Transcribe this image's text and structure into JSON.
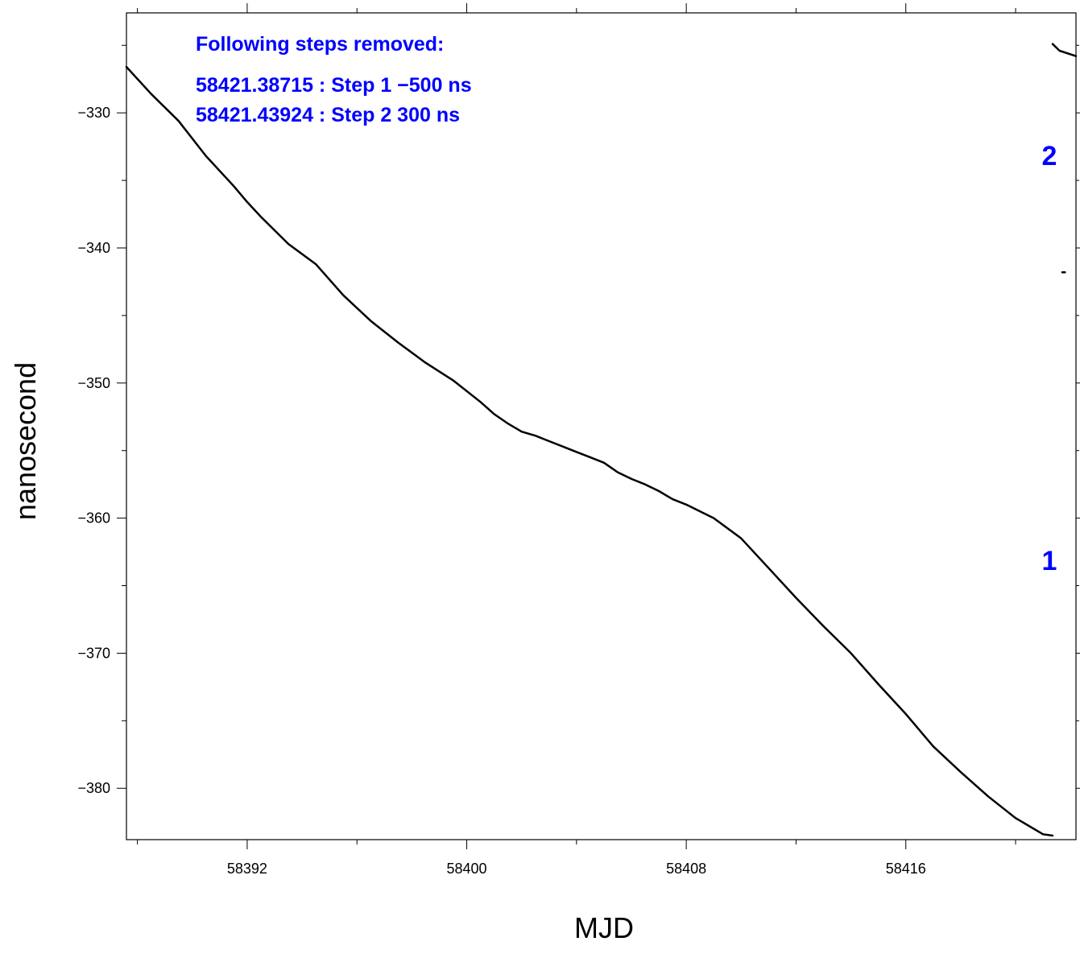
{
  "chart_data": {
    "type": "line",
    "title": "",
    "xlabel": "MJD",
    "ylabel": "nanosecond",
    "xlim": [
      58387.6,
      58422.2
    ],
    "ylim": [
      -383.8,
      -322.6
    ],
    "x_ticks": [
      58392,
      58400,
      58408,
      58416
    ],
    "x_tick_labels": [
      "58392",
      "58400",
      "58408",
      "58416"
    ],
    "x_minor_ticks": [
      58388,
      58396,
      58404,
      58412,
      58420
    ],
    "y_ticks": [
      -330,
      -340,
      -350,
      -360,
      -370,
      -380
    ],
    "y_tick_labels": [
      "−330",
      "−340",
      "−350",
      "−360",
      "−370",
      "−380"
    ],
    "y_minor_ticks": [
      -325,
      -335,
      -345,
      -355,
      -365,
      -375
    ],
    "grid": false,
    "legend": "none",
    "line_color": "#000000",
    "annotation_color": "#0000ff",
    "annotations": {
      "heading": "Following steps removed:",
      "lines": [
        "58421.38715 : Step 1 −500 ns",
        "58421.43924 : Step 2 300 ns"
      ],
      "marker_1": "1",
      "marker_2": "2"
    },
    "series": [
      {
        "x": [
          58387.6,
          58388.5,
          58389.5,
          58390.5,
          58391.5,
          58392.0,
          58392.5,
          58393.5,
          58394.5,
          58395.5,
          58396.5,
          58397.5,
          58398.5,
          58399.5,
          58400.5,
          58401.0,
          58401.5,
          58402.0,
          58402.5,
          58403.0,
          58403.5,
          58404.0,
          58404.5,
          58405.0,
          58405.5,
          58406.0,
          58406.5,
          58407.0,
          58407.5,
          58408.0,
          58409.0,
          58410.0,
          58411.0,
          58412.0,
          58413.0,
          58414.0,
          58415.0,
          58416.0,
          58417.0,
          58418.0,
          58419.0,
          58420.0,
          58421.0,
          58421.35
        ],
        "y": [
          -326.6,
          -328.6,
          -330.6,
          -333.2,
          -335.4,
          -336.6,
          -337.7,
          -339.7,
          -341.2,
          -343.5,
          -345.4,
          -347.0,
          -348.5,
          -349.8,
          -351.4,
          -352.3,
          -353.0,
          -353.6,
          -353.9,
          -354.3,
          -354.7,
          -355.1,
          -355.5,
          -355.9,
          -356.6,
          -357.1,
          -357.5,
          -358.0,
          -358.6,
          -359.0,
          -360.0,
          -361.5,
          -363.7,
          -365.9,
          -368.0,
          -370.0,
          -372.3,
          -374.5,
          -376.9,
          -378.8,
          -380.6,
          -382.2,
          -383.4,
          -383.5
        ]
      },
      {
        "x": [
          58421.35,
          58421.6,
          58422.2
        ],
        "y": [
          -324.9,
          -325.4,
          -325.8
        ]
      },
      {
        "x": [
          58421.7,
          58421.8
        ],
        "y": [
          -341.8,
          -341.8
        ]
      }
    ]
  }
}
